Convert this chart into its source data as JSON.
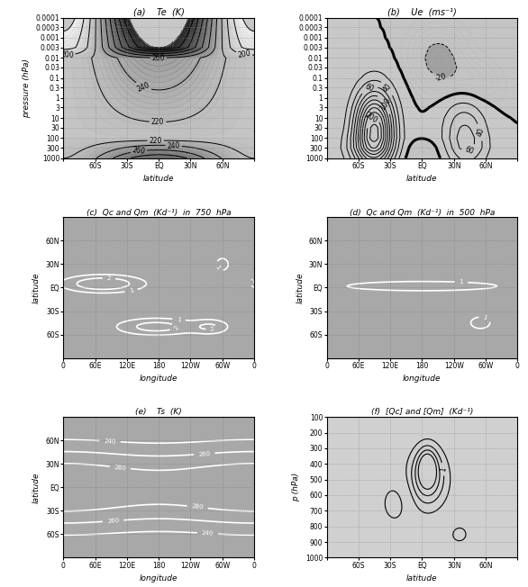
{
  "fig_width": 5.86,
  "fig_height": 6.52,
  "titles": {
    "a": "(a)    Te  (K)",
    "b": "(b)    Ue  (ms⁻¹)",
    "c": "(c)  Qc and Qm  (Kd⁻¹)  in  750  hPa",
    "d": "(d)  Qc and Qm  (Kd⁻¹)  in  500  hPa",
    "e": "(e)    Ts  (K)",
    "f": "(f)  [Qc] and [Qm]  (Kd⁻¹)"
  },
  "pressure_ticks": [
    0.0001,
    0.0003,
    0.001,
    0.003,
    0.01,
    0.03,
    0.1,
    0.3,
    1,
    3,
    10,
    30,
    100,
    300,
    1000
  ],
  "pressure_labels": [
    "0.0001",
    "0.0003",
    "0.001",
    "0.003",
    "0.01",
    "0.03",
    "0.1",
    "0.3",
    "1",
    "3",
    "10",
    "30",
    "100",
    "300",
    "1000"
  ],
  "lat_ticks": [
    -90,
    -60,
    -30,
    0,
    30,
    60,
    90
  ],
  "lat_labels": [
    "",
    "60S",
    "30S",
    "EQ",
    "30N",
    "60N",
    ""
  ],
  "lon_ticks": [
    0,
    60,
    120,
    180,
    240,
    300,
    360
  ],
  "lon_labels": [
    "0",
    "60E",
    "120E",
    "180",
    "120W",
    "60W",
    "0"
  ],
  "map_lat_ticks": [
    -60,
    -30,
    0,
    30,
    60
  ],
  "map_lat_labels": [
    "60S",
    "30S",
    "EQ",
    "30N",
    "60N"
  ],
  "p_ticks_f": [
    100,
    200,
    300,
    400,
    500,
    600,
    700,
    800,
    900,
    1000
  ],
  "p_labels_f": [
    "100",
    "200",
    "300",
    "400",
    "500",
    "600",
    "700",
    "800",
    "900",
    "1000"
  ]
}
